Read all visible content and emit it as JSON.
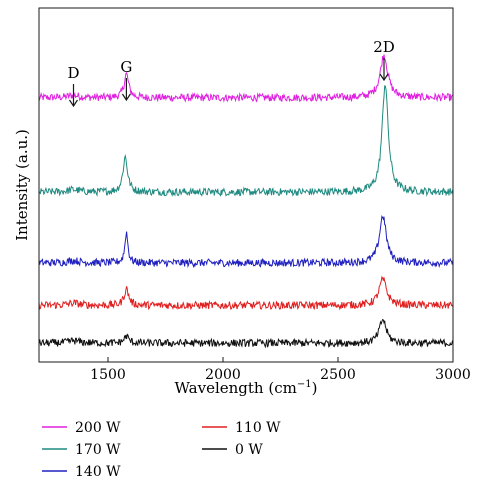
{
  "chart_data": {
    "type": "line",
    "title": "",
    "xlabel": "Wavelength (cm",
    "xlabel_sup": "−1",
    "xlabel_close": ")",
    "ylabel": "Intensity (a.u.)",
    "xlim": [
      1200,
      3000
    ],
    "x_ticks": [
      1500,
      2000,
      2500,
      3000
    ],
    "x_tick_labels": [
      "1500",
      "2000",
      "2500",
      "3000"
    ],
    "y_ticks_shown": false,
    "grid": false,
    "legend_position": "bottom",
    "annotations": [
      {
        "label": "D",
        "x": 1350
      },
      {
        "label": "G",
        "x": 1580
      },
      {
        "label": "2D",
        "x": 2700
      }
    ],
    "series": [
      {
        "name": "200 W",
        "color": "#e020e0",
        "baseline": 5.6,
        "peaks": [
          {
            "x": 1350,
            "height": 0.05,
            "width": 30
          },
          {
            "x": 1580,
            "height": 0.5,
            "width": 12
          },
          {
            "x": 2700,
            "height": 0.9,
            "width": 20
          }
        ]
      },
      {
        "name": "170 W",
        "color": "#1f8a80",
        "baseline": 3.6,
        "peaks": [
          {
            "x": 1350,
            "height": 0.05,
            "width": 30
          },
          {
            "x": 1575,
            "height": 0.75,
            "width": 12
          },
          {
            "x": 2705,
            "height": 2.3,
            "width": 16
          }
        ]
      },
      {
        "name": "140 W",
        "color": "#2020c0",
        "baseline": 2.1,
        "peaks": [
          {
            "x": 1350,
            "height": 0.05,
            "width": 30
          },
          {
            "x": 1580,
            "height": 0.65,
            "width": 8
          },
          {
            "x": 2695,
            "height": 1.0,
            "width": 18
          }
        ]
      },
      {
        "name": "110 W",
        "color": "#e02020",
        "baseline": 1.2,
        "peaks": [
          {
            "x": 1350,
            "height": 0.05,
            "width": 30
          },
          {
            "x": 1580,
            "height": 0.35,
            "width": 12
          },
          {
            "x": 2695,
            "height": 0.55,
            "width": 20
          }
        ]
      },
      {
        "name": "0 W",
        "color": "#111111",
        "baseline": 0.4,
        "peaks": [
          {
            "x": 1350,
            "height": 0.05,
            "width": 30
          },
          {
            "x": 1580,
            "height": 0.15,
            "width": 12
          },
          {
            "x": 2695,
            "height": 0.5,
            "width": 18
          }
        ]
      }
    ],
    "ylim": [
      0,
      7.5
    ],
    "noise": 0.08
  }
}
